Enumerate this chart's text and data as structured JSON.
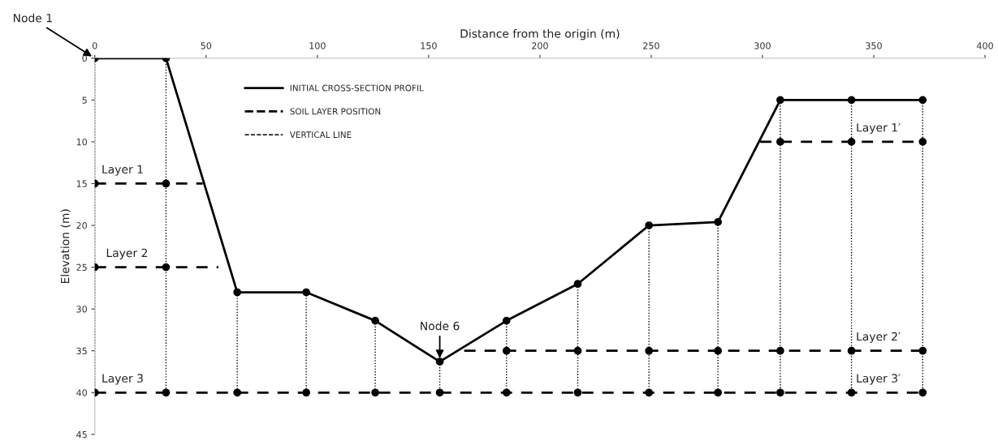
{
  "chart_data": {
    "type": "line",
    "xlabel": "Distance from the origin (m)",
    "ylabel": "Elevation (m)",
    "xlim": [
      0,
      400
    ],
    "xticks": [
      0,
      50,
      100,
      150,
      200,
      250,
      300,
      350,
      400
    ],
    "ylim": [
      45,
      0
    ],
    "yticks": [
      0,
      5,
      10,
      15,
      20,
      25,
      30,
      35,
      40,
      45
    ],
    "grid": false,
    "legend": "top",
    "series": [
      {
        "name": "INITIAL CROSS-SECTION PROFIL",
        "color": "#000000",
        "line_style": "solid",
        "marker": "circle",
        "x": [
          0,
          32,
          64,
          95,
          126,
          155,
          185,
          217,
          249,
          280,
          308,
          340,
          372
        ],
        "values": [
          0,
          0,
          28,
          28,
          31.4,
          36.3,
          31.4,
          27,
          20,
          19.6,
          5,
          5,
          5
        ]
      },
      {
        "name": "SOIL LAYER POSITION",
        "color": "#000000",
        "line_style": "dashed",
        "x": [
          0,
          48.5
        ],
        "values": [
          15,
          15
        ]
      },
      {
        "color": "#000000",
        "line_style": "dashed",
        "x": [
          0,
          55.5
        ],
        "values": [
          25,
          25
        ]
      },
      {
        "color": "#000000",
        "line_style": "dashed",
        "x": [
          0,
          372
        ],
        "values": [
          40,
          40
        ]
      },
      {
        "color": "#000000",
        "line_style": "dashed",
        "x": [
          166,
          372
        ],
        "values": [
          35,
          35
        ]
      },
      {
        "color": "#000000",
        "line_style": "dashed",
        "x": [
          299,
          372
        ],
        "values": [
          10,
          10
        ]
      },
      {
        "name": "VERTICAL LINE",
        "color": "#000000",
        "line_style": "dotted",
        "x": [
          0,
          0
        ],
        "values": [
          0,
          40
        ]
      },
      {
        "color": "#000000",
        "line_style": "dotted",
        "x": [
          32,
          32
        ],
        "values": [
          0,
          40
        ]
      },
      {
        "color": "#000000",
        "line_style": "dotted",
        "x": [
          64,
          64
        ],
        "values": [
          28,
          40
        ]
      },
      {
        "color": "#000000",
        "line_style": "dotted",
        "x": [
          95,
          95
        ],
        "values": [
          28,
          40
        ]
      },
      {
        "color": "#000000",
        "line_style": "dotted",
        "x": [
          126,
          126
        ],
        "values": [
          31.4,
          40
        ]
      },
      {
        "color": "#000000",
        "line_style": "dotted",
        "x": [
          155,
          155
        ],
        "values": [
          36.3,
          40
        ]
      },
      {
        "color": "#000000",
        "line_style": "dotted",
        "x": [
          185,
          185
        ],
        "values": [
          31.4,
          40
        ]
      },
      {
        "color": "#000000",
        "line_style": "dotted",
        "x": [
          217,
          217
        ],
        "values": [
          27,
          40
        ]
      },
      {
        "color": "#000000",
        "line_style": "dotted",
        "x": [
          249,
          249
        ],
        "values": [
          20,
          40
        ]
      },
      {
        "color": "#000000",
        "line_style": "dotted",
        "x": [
          280,
          280
        ],
        "values": [
          19.6,
          40
        ]
      },
      {
        "color": "#000000",
        "line_style": "dotted",
        "x": [
          308,
          308
        ],
        "values": [
          5,
          40
        ]
      },
      {
        "color": "#000000",
        "line_style": "dotted",
        "x": [
          340,
          340
        ],
        "values": [
          5,
          40
        ]
      },
      {
        "color": "#000000",
        "line_style": "dotted",
        "x": [
          372,
          372
        ],
        "values": [
          5,
          40
        ]
      },
      {
        "type": "scatter",
        "color": "#000000",
        "marker": "circle",
        "x": [
          0,
          0,
          0,
          32,
          32,
          32,
          64,
          95,
          126,
          155,
          185,
          185,
          217,
          217,
          249,
          249,
          280,
          280,
          308,
          308,
          308,
          340,
          340,
          340,
          372,
          372,
          372
        ],
        "values": [
          15,
          25,
          40,
          15,
          25,
          40,
          40,
          40,
          40,
          40,
          35,
          40,
          35,
          40,
          35,
          40,
          35,
          40,
          10,
          35,
          40,
          10,
          35,
          40,
          10,
          35,
          40
        ]
      }
    ],
    "annotations": [
      {
        "text": "Node 1",
        "x": 0,
        "y": 0
      },
      {
        "text": "Node 6",
        "x": 155,
        "y": 36.3
      },
      {
        "text": "Layer 1",
        "x": 3,
        "y": 15
      },
      {
        "text": "Layer 2",
        "x": 5,
        "y": 25
      },
      {
        "text": "Layer 3",
        "x": 3,
        "y": 40
      },
      {
        "text": "Layer 1′",
        "x": 342,
        "y": 10
      },
      {
        "text": "Layer 2′",
        "x": 342,
        "y": 35
      },
      {
        "text": "Layer 3′",
        "x": 342,
        "y": 40
      }
    ]
  }
}
